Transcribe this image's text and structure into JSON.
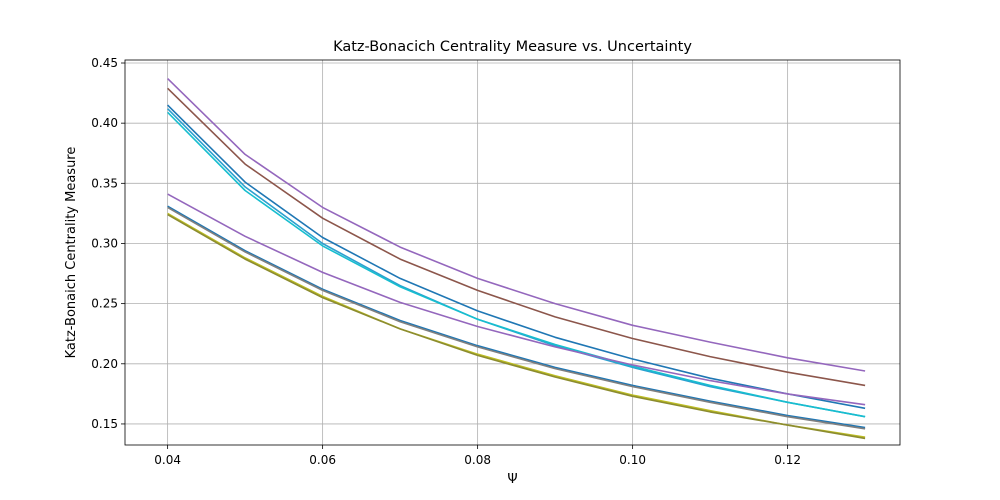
{
  "chart_data": {
    "type": "line",
    "title": "Katz-Bonacich Centrality Measure vs. Uncertainty",
    "xlabel": "Ψ",
    "ylabel": "Katz-Bonaich Centrality Measure",
    "xlim": [
      0.0345,
      0.1345
    ],
    "ylim": [
      0.1325,
      0.4525
    ],
    "xticks": [
      "0.04",
      "0.06",
      "0.08",
      "0.10",
      "0.12"
    ],
    "xtick_values": [
      0.04,
      0.06,
      0.08,
      0.1,
      0.12
    ],
    "yticks": [
      "0.15",
      "0.20",
      "0.25",
      "0.30",
      "0.35",
      "0.40",
      "0.45"
    ],
    "ytick_values": [
      0.15,
      0.2,
      0.25,
      0.3,
      0.35,
      0.4,
      0.45
    ],
    "grid": true,
    "x": [
      0.04,
      0.05,
      0.06,
      0.07,
      0.08,
      0.09,
      0.1,
      0.11,
      0.12,
      0.13
    ],
    "series": [
      {
        "color": "#9467bd",
        "values": [
          0.437,
          0.374,
          0.33,
          0.297,
          0.271,
          0.25,
          0.232,
          0.218,
          0.205,
          0.194
        ]
      },
      {
        "color": "#8c564b",
        "values": [
          0.429,
          0.366,
          0.321,
          0.287,
          0.261,
          0.239,
          0.221,
          0.206,
          0.193,
          0.182
        ]
      },
      {
        "color": "#1f77b4",
        "values": [
          0.415,
          0.351,
          0.305,
          0.271,
          0.244,
          0.222,
          0.204,
          0.188,
          0.175,
          0.163
        ]
      },
      {
        "color": "#2ca0d0",
        "values": [
          0.412,
          0.347,
          0.3,
          0.265,
          0.237,
          0.215,
          0.197,
          0.181,
          0.168,
          0.156
        ]
      },
      {
        "color": "#17becf",
        "values": [
          0.409,
          0.344,
          0.298,
          0.264,
          0.237,
          0.216,
          0.198,
          0.182,
          0.168,
          0.156
        ]
      },
      {
        "color": "#9467bd",
        "values": [
          0.341,
          0.306,
          0.276,
          0.251,
          0.231,
          0.214,
          0.199,
          0.186,
          0.175,
          0.166
        ]
      },
      {
        "color": "#1f77b4",
        "values": [
          0.331,
          0.294,
          0.262,
          0.236,
          0.215,
          0.197,
          0.182,
          0.169,
          0.157,
          0.147
        ]
      },
      {
        "color": "#7f7f7f",
        "values": [
          0.33,
          0.293,
          0.261,
          0.235,
          0.214,
          0.196,
          0.181,
          0.168,
          0.156,
          0.146
        ]
      },
      {
        "color": "#bcbd22",
        "values": [
          0.325,
          0.288,
          0.256,
          0.229,
          0.208,
          0.19,
          0.174,
          0.161,
          0.149,
          0.139
        ]
      },
      {
        "color": "#8c8c30",
        "values": [
          0.324,
          0.287,
          0.255,
          0.229,
          0.207,
          0.189,
          0.173,
          0.16,
          0.149,
          0.138
        ]
      }
    ]
  }
}
